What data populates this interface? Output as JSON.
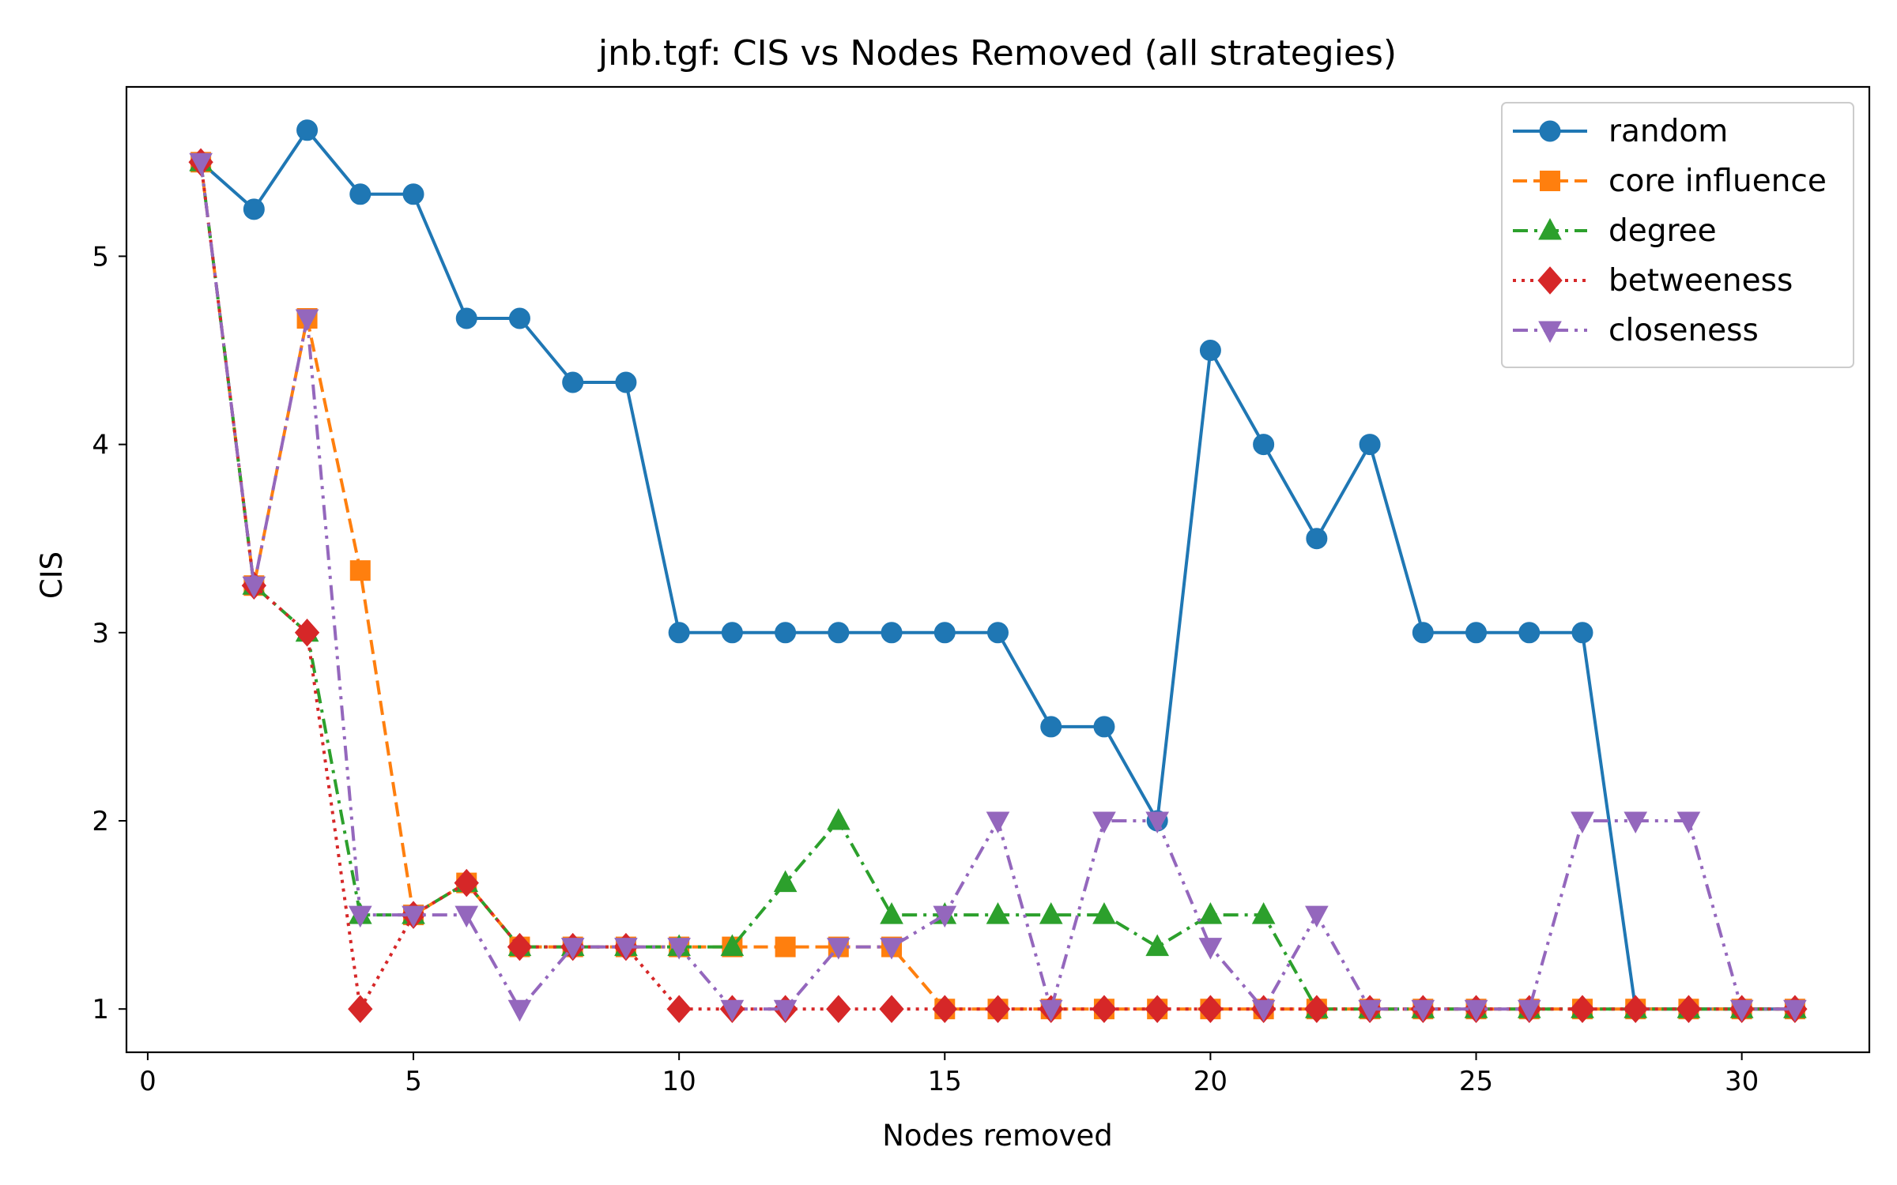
{
  "chart_data": {
    "type": "line",
    "title": "jnb.tgf: CIS vs Nodes Removed (all strategies)",
    "xlabel": "Nodes removed",
    "ylabel": "CIS",
    "xlim": [
      -0.4,
      32.4
    ],
    "ylim": [
      0.77,
      5.9
    ],
    "xticks": [
      0,
      5,
      10,
      15,
      20,
      25,
      30
    ],
    "yticks": [
      1,
      2,
      3,
      4,
      5
    ],
    "legend_position": "top-right",
    "grid": false,
    "x": [
      1,
      2,
      3,
      4,
      5,
      6,
      7,
      8,
      9,
      10,
      11,
      12,
      13,
      14,
      15,
      16,
      17,
      18,
      19,
      20,
      21,
      22,
      23,
      24,
      25,
      26,
      27,
      28,
      29,
      30,
      31
    ],
    "series": [
      {
        "name": "random",
        "color": "#1f77b4",
        "line_style": "solid",
        "marker": "circle",
        "values": [
          5.5,
          5.25,
          5.67,
          5.33,
          5.33,
          4.67,
          4.67,
          4.33,
          4.33,
          3,
          3,
          3,
          3,
          3,
          3,
          3,
          2.5,
          2.5,
          2,
          4.5,
          4,
          3.5,
          4,
          3,
          3,
          3,
          3,
          1,
          1,
          1,
          1
        ]
      },
      {
        "name": "core influence",
        "color": "#ff7f0e",
        "line_style": "dashed",
        "marker": "square",
        "values": [
          5.5,
          3.25,
          4.67,
          3.33,
          1.5,
          1.67,
          1.33,
          1.33,
          1.33,
          1.33,
          1.33,
          1.33,
          1.33,
          1.33,
          1,
          1,
          1,
          1,
          1,
          1,
          1,
          1,
          1,
          1,
          1,
          1,
          1,
          1,
          1,
          1,
          1
        ]
      },
      {
        "name": "degree",
        "color": "#2ca02c",
        "line_style": "dashdot",
        "marker": "triangle-up",
        "values": [
          5.5,
          3.25,
          3,
          1.5,
          1.5,
          1.67,
          1.33,
          1.33,
          1.33,
          1.33,
          1.33,
          1.67,
          2,
          1.5,
          1.5,
          1.5,
          1.5,
          1.5,
          1.33,
          1.5,
          1.5,
          1,
          1,
          1,
          1,
          1,
          1,
          1,
          1,
          1,
          1
        ]
      },
      {
        "name": "betweeness",
        "color": "#d62728",
        "line_style": "dotted",
        "marker": "diamond",
        "values": [
          5.5,
          3.25,
          3,
          1,
          1.5,
          1.67,
          1.33,
          1.33,
          1.33,
          1,
          1,
          1,
          1,
          1,
          1,
          1,
          1,
          1,
          1,
          1,
          1,
          1,
          1,
          1,
          1,
          1,
          1,
          1,
          1,
          1,
          1
        ]
      },
      {
        "name": "closeness",
        "color": "#9467bd",
        "line_style": "dashdotdot",
        "marker": "triangle-down",
        "values": [
          5.5,
          3.25,
          4.67,
          1.5,
          1.5,
          1.5,
          1,
          1.33,
          1.33,
          1.33,
          1,
          1,
          1.33,
          1.33,
          1.5,
          2,
          1,
          2,
          2,
          1.33,
          1,
          1.5,
          1,
          1,
          1,
          1,
          2,
          2,
          2,
          1,
          1
        ]
      }
    ]
  }
}
